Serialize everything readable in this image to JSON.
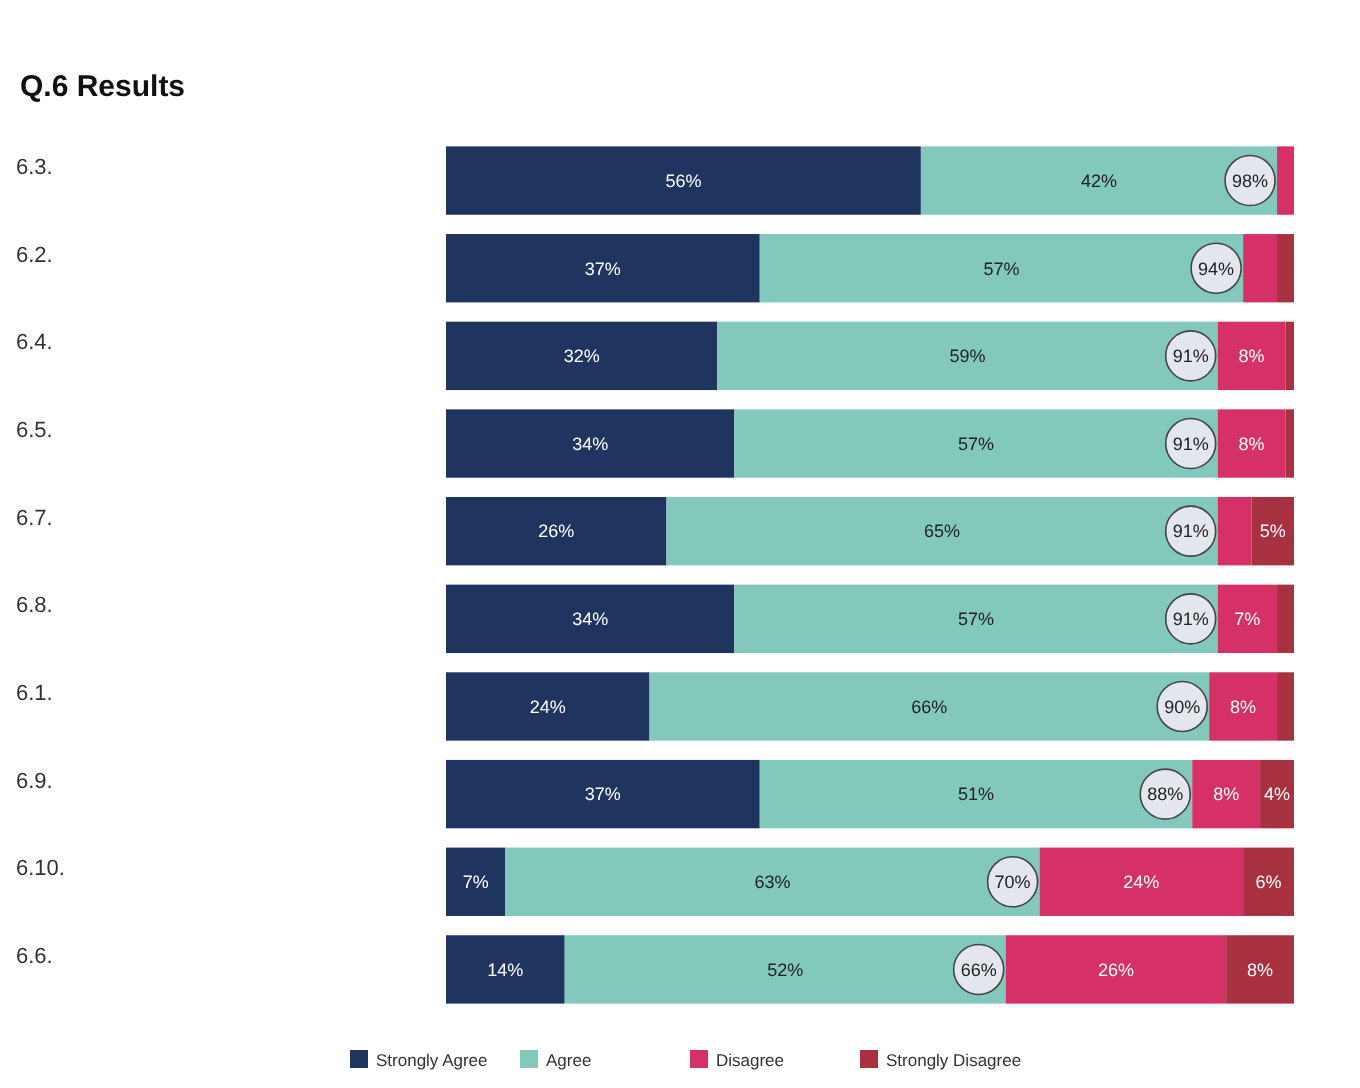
{
  "chart_data": {
    "type": "bar",
    "title": "Q.6 Results",
    "orientation": "horizontal",
    "stacked": true,
    "categories": [
      "6.3.",
      "6.2.",
      "6.4.",
      "6.5.",
      "6.7.",
      "6.8.",
      "6.1.",
      "6.9.",
      "6.10.",
      "6.6."
    ],
    "xlim": [
      0,
      100
    ],
    "tick_labels": "y",
    "legend": "bottom",
    "series": [
      {
        "name": "Strongly Agree",
        "color": "#1f3560",
        "values": [
          56,
          37,
          32,
          34,
          26,
          34,
          24,
          37,
          7,
          14
        ],
        "value_labels": [
          "56%",
          "37%",
          "32%",
          "34%",
          "26%",
          "34%",
          "24%",
          "37%",
          "7%",
          "14%"
        ]
      },
      {
        "name": "Agree",
        "color": "#82c8bb",
        "values": [
          42,
          57,
          59,
          57,
          65,
          57,
          66,
          51,
          63,
          52
        ],
        "value_labels": [
          "42%",
          "57%",
          "59%",
          "57%",
          "65%",
          "57%",
          "66%",
          "51%",
          "63%",
          "52%"
        ]
      },
      {
        "name": "Disagree",
        "color": "#d63166",
        "values": [
          2,
          4,
          8,
          8,
          4,
          7,
          8,
          8,
          24,
          26
        ],
        "value_labels": [
          null,
          null,
          "8%",
          "8%",
          null,
          "7%",
          "8%",
          "8%",
          "24%",
          "26%"
        ]
      },
      {
        "name": "Strongly Disagree",
        "color": "#a8313f",
        "values": [
          0,
          2,
          1,
          1,
          5,
          2,
          2,
          4,
          6,
          8
        ],
        "value_labels": [
          null,
          null,
          null,
          null,
          "5%",
          null,
          null,
          "4%",
          "6%",
          "8%"
        ]
      }
    ],
    "annotations": [
      {
        "text": "98%",
        "x": 98,
        "y": "6.3."
      },
      {
        "text": "94%",
        "x": 94,
        "y": "6.2."
      },
      {
        "text": "91%",
        "x": 91,
        "y": "6.4."
      },
      {
        "text": "91%",
        "x": 91,
        "y": "6.5."
      },
      {
        "text": "91%",
        "x": 91,
        "y": "6.7."
      },
      {
        "text": "91%",
        "x": 91,
        "y": "6.8."
      },
      {
        "text": "90%",
        "x": 90,
        "y": "6.1."
      },
      {
        "text": "88%",
        "x": 88,
        "y": "6.9."
      },
      {
        "text": "70%",
        "x": 70,
        "y": "6.10."
      },
      {
        "text": "66%",
        "x": 66,
        "y": "6.6."
      }
    ]
  }
}
